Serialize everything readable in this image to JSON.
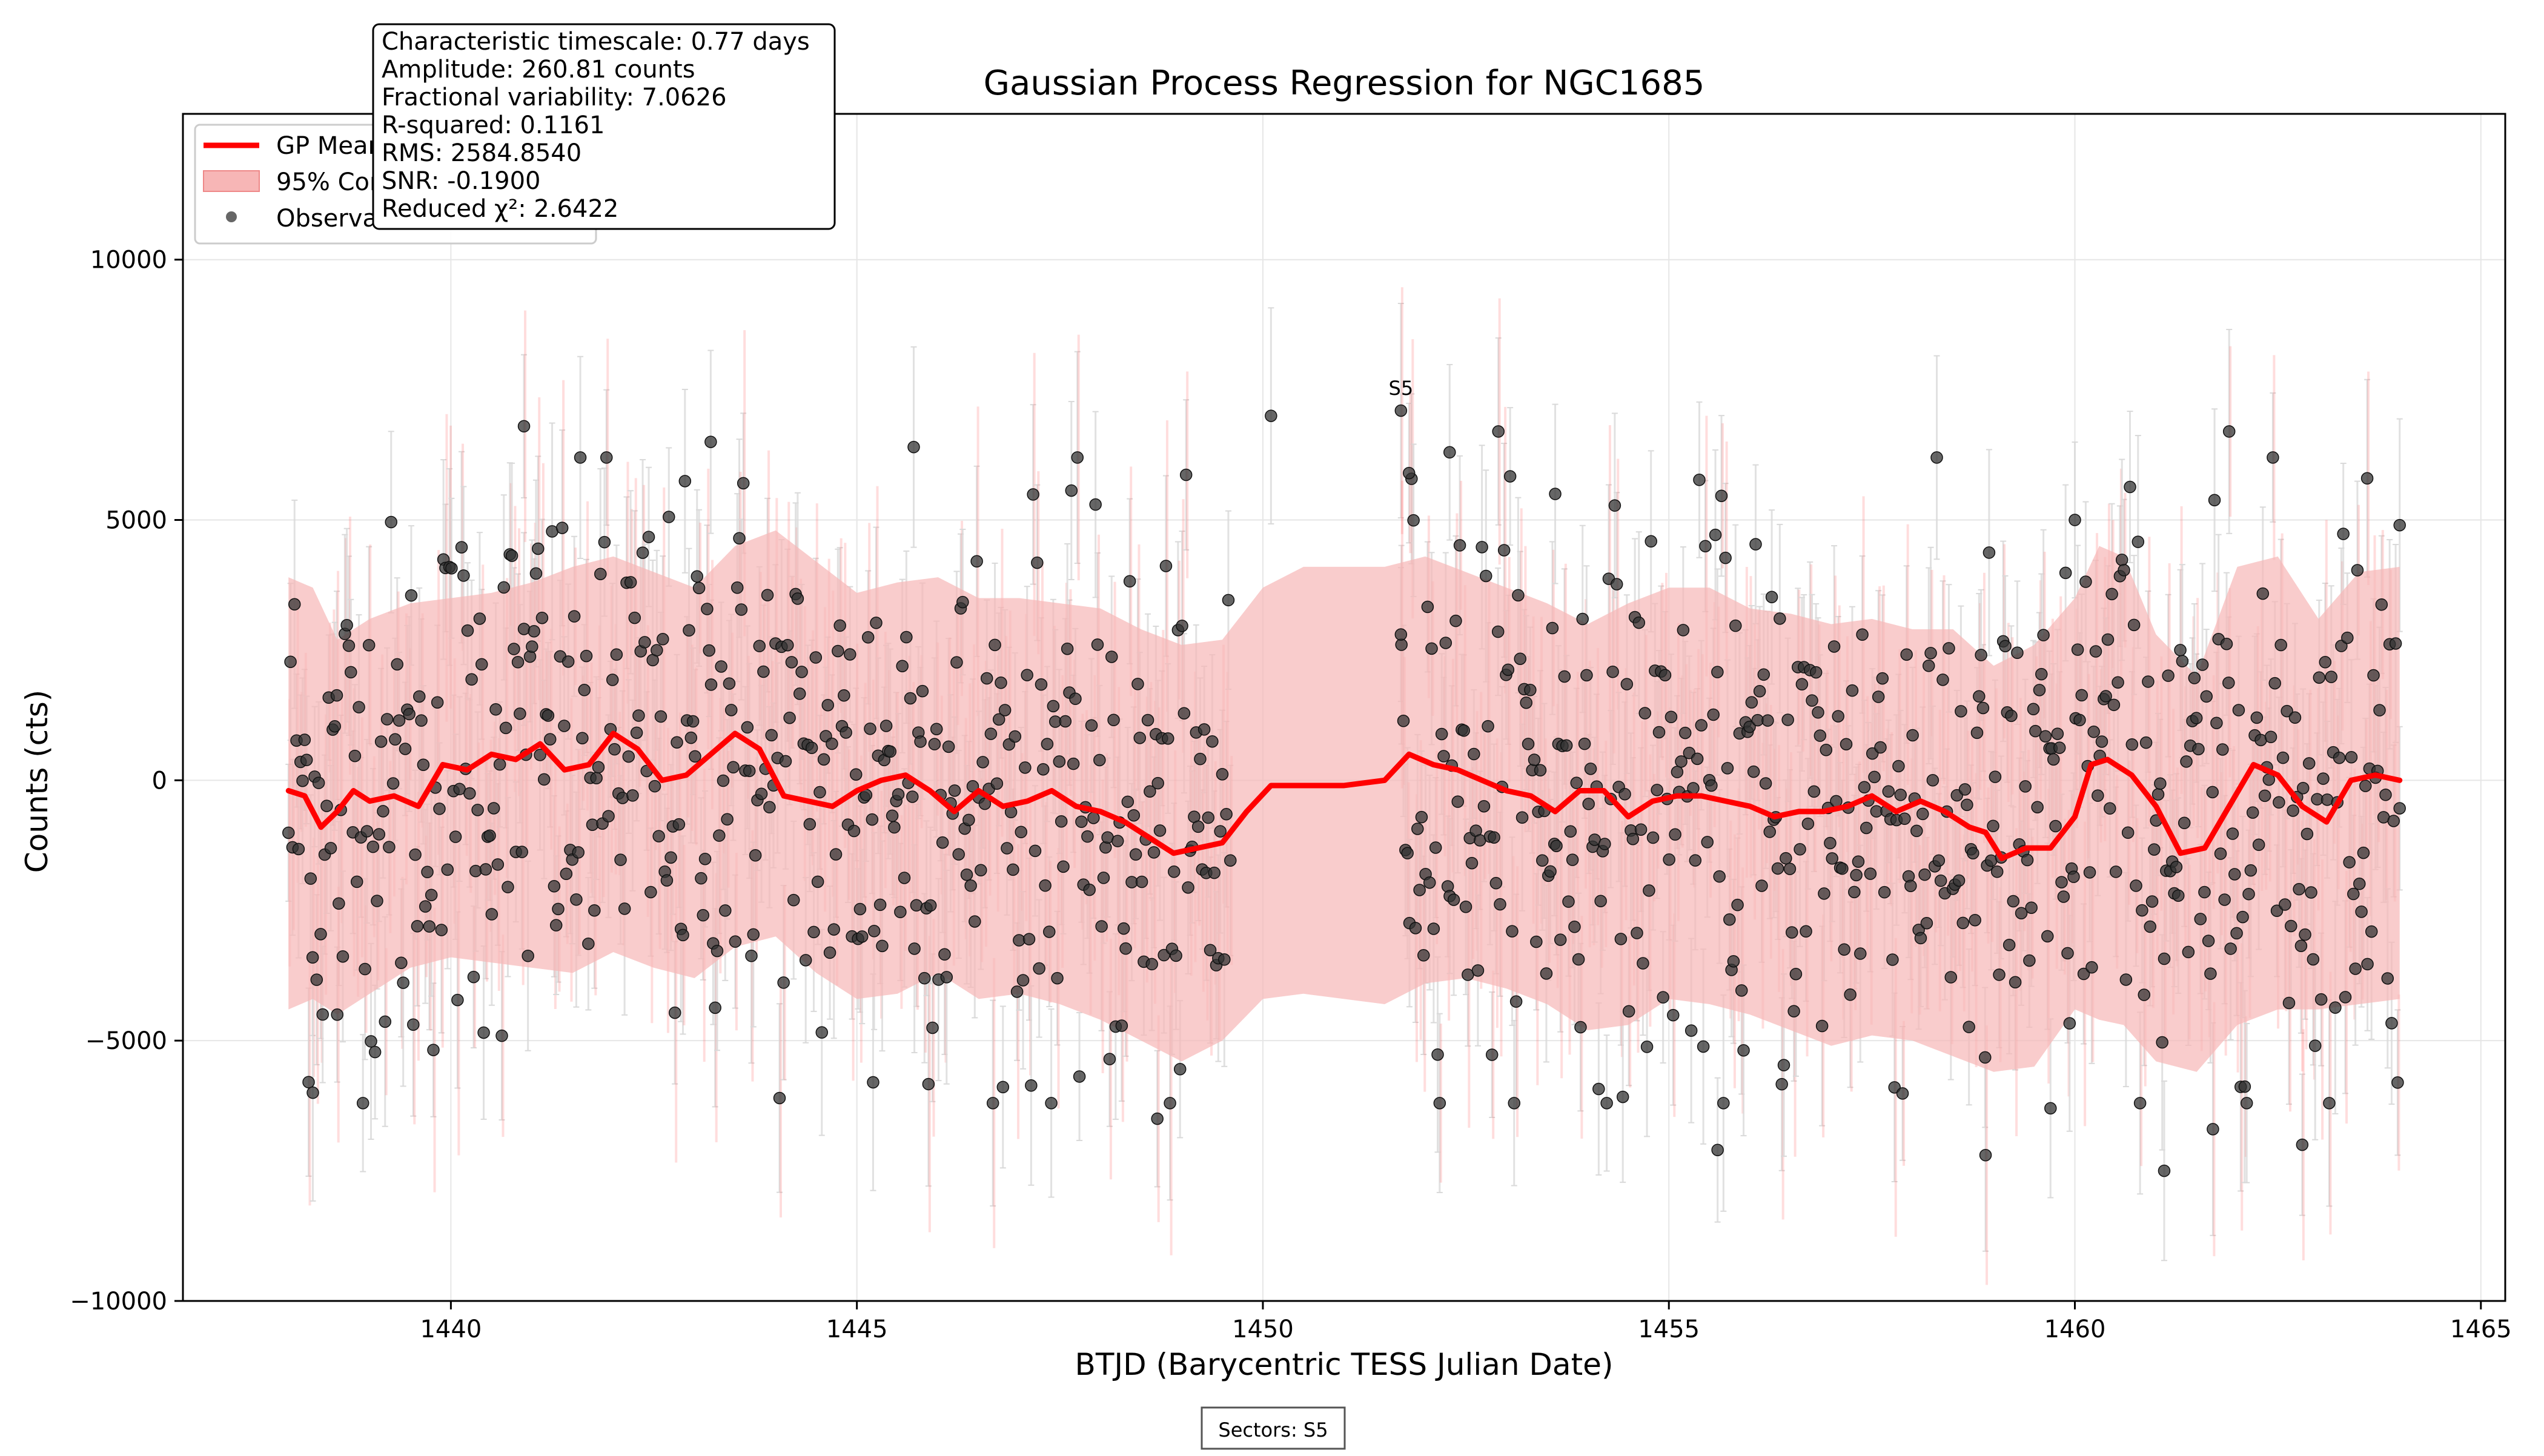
{
  "chart_data": {
    "type": "scatter",
    "title": "Gaussian Process Regression for NGC1685",
    "xlabel": "BTJD (Barycentric TESS Julian Date)",
    "ylabel": "Counts (cts)",
    "xlim": [
      1436.7,
      1465.3
    ],
    "ylim": [
      -10000,
      12800
    ],
    "xticks": [
      1440,
      1445,
      1450,
      1455,
      1460,
      1465
    ],
    "yticks": [
      -10000,
      -5000,
      0,
      5000,
      10000
    ],
    "grid": true,
    "legend": {
      "position": "top-left",
      "entries": [
        "GP Mean",
        "95% Confidence Interval",
        "Observations"
      ]
    },
    "stats_box": [
      "Characteristic timescale: 0.77 days",
      "Amplitude: 260.81 counts",
      "Fractional variability: 7.0626",
      "R-squared: 0.1161",
      "RMS: 2584.8540",
      "SNR: -0.1900",
      "Reduced χ²: 2.6422"
    ],
    "sector_label": {
      "text": "S5",
      "x": 1451.7,
      "y": 7400
    },
    "footer_box": "Sectors: S5",
    "colors": {
      "gp_mean": "#ff0000",
      "band": "#f7b6b6",
      "points": "#333333",
      "errorbars": "#d9d9d9"
    },
    "gp_mean": {
      "x": [
        1438.0,
        1438.2,
        1438.4,
        1438.6,
        1438.8,
        1439.0,
        1439.3,
        1439.6,
        1439.9,
        1440.2,
        1440.5,
        1440.8,
        1441.1,
        1441.4,
        1441.7,
        1442.0,
        1442.3,
        1442.6,
        1442.9,
        1443.2,
        1443.5,
        1443.8,
        1444.1,
        1444.4,
        1444.7,
        1445.0,
        1445.3,
        1445.6,
        1445.9,
        1446.2,
        1446.5,
        1446.8,
        1447.1,
        1447.4,
        1447.7,
        1448.0,
        1448.3,
        1448.6,
        1448.9,
        1449.2,
        1449.5,
        1449.8,
        1450.1,
        1450.5,
        1451.0,
        1451.5,
        1451.8,
        1452.1,
        1452.4,
        1452.7,
        1453.0,
        1453.3,
        1453.6,
        1453.9,
        1454.2,
        1454.5,
        1454.8,
        1455.1,
        1455.4,
        1455.7,
        1456.0,
        1456.3,
        1456.6,
        1456.9,
        1457.2,
        1457.5,
        1457.8,
        1458.1,
        1458.4,
        1458.7,
        1458.9,
        1459.1,
        1459.4,
        1459.7,
        1460.0,
        1460.2,
        1460.4,
        1460.7,
        1461.0,
        1461.3,
        1461.6,
        1461.9,
        1462.2,
        1462.5,
        1462.8,
        1463.1,
        1463.4,
        1463.7,
        1464.0
      ],
      "y": [
        -200,
        -300,
        -900,
        -600,
        -200,
        -400,
        -300,
        -500,
        300,
        200,
        500,
        400,
        700,
        200,
        300,
        900,
        600,
        0,
        100,
        500,
        900,
        600,
        -300,
        -400,
        -500,
        -200,
        0,
        100,
        -200,
        -600,
        -200,
        -500,
        -400,
        -200,
        -500,
        -600,
        -800,
        -1100,
        -1400,
        -1300,
        -1200,
        -600,
        -100,
        -100,
        -100,
        0,
        500,
        300,
        200,
        0,
        -200,
        -300,
        -600,
        -200,
        -200,
        -700,
        -400,
        -300,
        -300,
        -400,
        -500,
        -700,
        -600,
        -600,
        -500,
        -300,
        -600,
        -400,
        -600,
        -900,
        -1000,
        -1500,
        -1300,
        -1300,
        -700,
        300,
        400,
        100,
        -500,
        -1400,
        -1300,
        -500,
        300,
        100,
        -500,
        -800,
        0,
        100,
        0
      ]
    },
    "ci_upper": {
      "x": [
        1438.0,
        1438.3,
        1438.6,
        1439.0,
        1439.5,
        1440.0,
        1440.5,
        1441.0,
        1441.5,
        1442.0,
        1442.5,
        1443.0,
        1443.5,
        1444.0,
        1444.5,
        1445.0,
        1445.5,
        1446.0,
        1446.5,
        1447.0,
        1447.5,
        1448.0,
        1448.5,
        1449.0,
        1449.5,
        1450.0,
        1450.5,
        1451.0,
        1451.5,
        1452.0,
        1452.5,
        1453.0,
        1453.5,
        1454.0,
        1454.5,
        1455.0,
        1455.5,
        1456.0,
        1456.5,
        1457.0,
        1457.5,
        1458.0,
        1458.5,
        1459.0,
        1459.5,
        1460.0,
        1460.3,
        1460.6,
        1461.0,
        1461.5,
        1462.0,
        1462.5,
        1463.0,
        1463.5,
        1464.0
      ],
      "y": [
        3900,
        3700,
        2700,
        3100,
        3400,
        3500,
        3600,
        3800,
        4100,
        4300,
        4000,
        3700,
        4500,
        4800,
        4200,
        3600,
        3800,
        3900,
        3500,
        3500,
        3400,
        3300,
        2900,
        2600,
        2700,
        3700,
        4100,
        4100,
        4100,
        4300,
        4000,
        3700,
        3400,
        3000,
        3400,
        3700,
        3700,
        3300,
        3200,
        3000,
        3100,
        2900,
        2900,
        2200,
        2600,
        3500,
        4500,
        4300,
        2800,
        2000,
        4100,
        4300,
        3100,
        4000,
        4100
      ]
    },
    "ci_lower": {
      "x": [
        1438.0,
        1438.3,
        1438.6,
        1439.0,
        1439.5,
        1440.0,
        1440.5,
        1441.0,
        1441.5,
        1442.0,
        1442.5,
        1443.0,
        1443.5,
        1444.0,
        1444.5,
        1445.0,
        1445.5,
        1446.0,
        1446.5,
        1447.0,
        1447.5,
        1448.0,
        1448.5,
        1449.0,
        1449.5,
        1450.0,
        1450.5,
        1451.0,
        1451.5,
        1452.0,
        1452.5,
        1453.0,
        1453.5,
        1454.0,
        1454.5,
        1455.0,
        1455.5,
        1456.0,
        1456.5,
        1457.0,
        1457.5,
        1458.0,
        1458.5,
        1459.0,
        1459.5,
        1460.0,
        1460.3,
        1460.6,
        1461.0,
        1461.5,
        1462.0,
        1462.5,
        1463.0,
        1463.5,
        1464.0
      ],
      "y": [
        -4400,
        -4200,
        -4500,
        -4100,
        -3600,
        -3400,
        -3500,
        -3600,
        -3700,
        -3300,
        -3600,
        -3800,
        -3200,
        -3000,
        -3700,
        -4200,
        -4100,
        -3700,
        -4200,
        -4100,
        -4300,
        -4600,
        -5000,
        -5400,
        -5000,
        -4200,
        -4100,
        -4200,
        -4300,
        -3900,
        -3800,
        -4000,
        -4300,
        -4800,
        -4700,
        -4200,
        -4300,
        -4500,
        -4800,
        -5100,
        -4900,
        -5000,
        -5300,
        -5600,
        -5500,
        -4400,
        -4600,
        -4700,
        -5400,
        -5600,
        -4700,
        -4400,
        -4400,
        -4300,
        -4200
      ]
    },
    "observations": {
      "x_start": 1438.0,
      "x_end": 1464.0,
      "count": 1050,
      "gap": [
        1449.6,
        1451.7
      ],
      "y_sd": 2600,
      "yerr_typical": 1500,
      "outliers": [
        [
          1440.9,
          6800
        ],
        [
          1450.1,
          7000
        ],
        [
          1451.7,
          7100
        ],
        [
          1452.3,
          6300
        ],
        [
          1452.9,
          6700
        ],
        [
          1445.7,
          6400
        ],
        [
          1461.9,
          6700
        ],
        [
          1443.2,
          6500
        ],
        [
          1451.8,
          5900
        ],
        [
          1460.0,
          5000
        ],
        [
          1463.6,
          5800
        ],
        [
          1464.0,
          4900
        ],
        [
          1448.7,
          -6500
        ],
        [
          1455.6,
          -7100
        ],
        [
          1458.9,
          -7200
        ],
        [
          1461.1,
          -7500
        ],
        [
          1462.8,
          -7000
        ],
        [
          1438.3,
          -6000
        ],
        [
          1461.7,
          -6700
        ],
        [
          1459.7,
          -6300
        ],
        [
          1438.6,
          -4500
        ],
        [
          1445.2,
          -5800
        ],
        [
          1451.7,
          2800
        ],
        [
          1453.6,
          5500
        ]
      ]
    }
  }
}
